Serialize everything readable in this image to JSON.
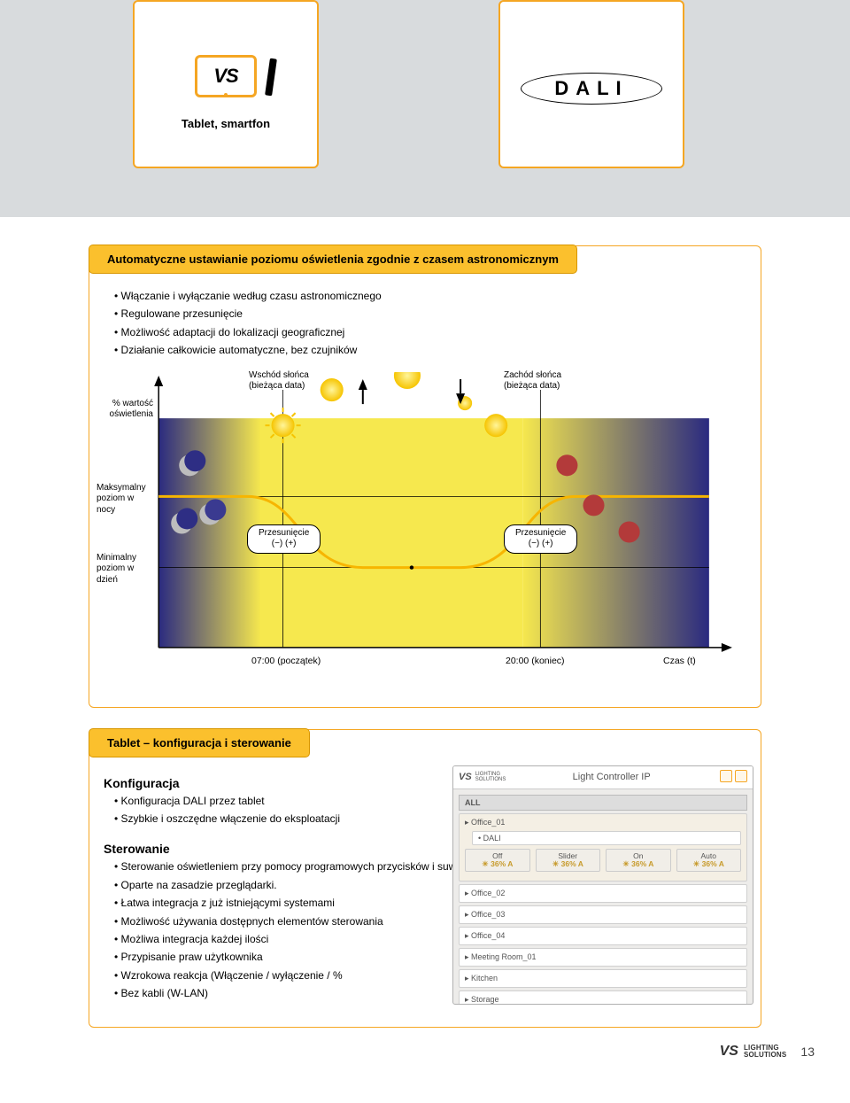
{
  "top": {
    "tablet_label": "Tablet, smartfon",
    "tablet_glyph": "VS",
    "dali_label": "DALI"
  },
  "astro": {
    "title": "Automatyczne ustawianie poziomu oświetlenia zgodnie z czasem astronomicznym",
    "bullets": [
      "Włączanie i wyłączanie według czasu astronomicznego",
      "Regulowane przesunięcie",
      "Możliwość adaptacji do lokalizacji geograficznej",
      "Działanie całkowicie automatyczne, bez czujników"
    ],
    "chart": {
      "type": "line",
      "background_day": "#f6e84e",
      "background_night": "#2a2a80",
      "curve_color": "#f7b500",
      "curve_width": 3,
      "axis_color": "#000000",
      "moon_color": "#bdbdbd",
      "sun_color": "#f7e22e",
      "red_dot_color": "#b33a3a",
      "y_label": "% wartość\noświetlenia",
      "sunrise_label": "Wschód słońca\n(bieżąca data)",
      "sunset_label": "Zachód słońca\n(bieżąca data)",
      "night_max_label": "Maksymalny\npoziom w\nnocy",
      "day_min_label": "Minimalny\npoziom w\ndzień",
      "offset_label": "Przesunięcie",
      "offset_sub": "(−)     (+)",
      "x_ticks": [
        {
          "pos": 0.25,
          "label": "07:00 (początek)"
        },
        {
          "pos": 0.7,
          "label": "20:00 (koniec)"
        },
        {
          "pos": 0.96,
          "label": "Czas (t)"
        }
      ],
      "night_level_y": 0.37,
      "day_level_y": 0.62,
      "sunrise_x": 0.25,
      "sunset_x": 0.7
    }
  },
  "tablet_section": {
    "title": "Tablet – konfiguracja i sterowanie",
    "config_head": "Konfiguracja",
    "config_bullets": [
      "Konfiguracja DALI przez tablet",
      "Szybkie i oszczędne włączenie do eksploatacji"
    ],
    "control_head": "Sterowanie",
    "control_bullets": [
      "Sterowanie oświetleniem przy pomocy programowych przycisków i suwaków",
      "Oparte na zasadzie przeglądarki.",
      "Łatwa integracja z już istniejącymi systemami",
      "Możliwość używania dostępnych elementów sterowania",
      "Możliwa integracja każdej ilości",
      "Przypisanie praw użytkownika",
      "Wzrokowa reakcja (Włączenie / wyłączenie / %",
      "Bez kabli (W-LAN)"
    ],
    "ui": {
      "brand": "VS",
      "brand_sub": "LIGHTING\nSOLUTIONS",
      "title": "Light Controller IP",
      "all": "ALL",
      "open_row": "Office_01",
      "dali": "DALI",
      "buttons": [
        {
          "label": "Off",
          "pct": "36% A"
        },
        {
          "label": "Slider",
          "pct": "36% A"
        },
        {
          "label": "On",
          "pct": "36% A"
        },
        {
          "label": "Auto",
          "pct": "36% A"
        }
      ],
      "rows": [
        "Office_02",
        "Office_03",
        "Office_04",
        "Meeting Room_01",
        "Kitchen",
        "Storage"
      ]
    }
  },
  "footer": {
    "logo_main": "VS",
    "logo_sub": "LIGHTING\nSOLUTIONS",
    "page_no": "13"
  },
  "colors": {
    "orange": "#f5a623",
    "pill": "#fbc02d",
    "grey_band": "#d8dbdd"
  }
}
